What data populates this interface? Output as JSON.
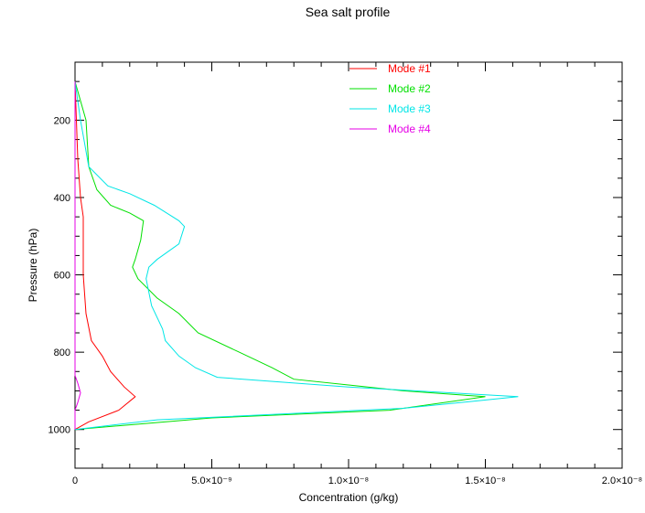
{
  "chart_data": {
    "type": "line",
    "title": "Sea salt profile",
    "xlabel": "Concentration (g/kg)",
    "ylabel": "Pressure (hPa)",
    "xlim": [
      0,
      2e-08
    ],
    "ylim": [
      1100,
      50
    ],
    "y_reversed": true,
    "grid": false,
    "legend_position": "top-right",
    "x_ticks": [
      {
        "value": 0,
        "label": "0"
      },
      {
        "value": 5e-09,
        "label": "5.0×10⁻⁹"
      },
      {
        "value": 1e-08,
        "label": "1.0×10⁻⁸"
      },
      {
        "value": 1.5e-08,
        "label": "1.5×10⁻⁸"
      },
      {
        "value": 2e-08,
        "label": "2.0×10⁻⁸"
      }
    ],
    "y_ticks": [
      {
        "value": 200,
        "label": "200"
      },
      {
        "value": 400,
        "label": "400"
      },
      {
        "value": 600,
        "label": "600"
      },
      {
        "value": 800,
        "label": "800"
      },
      {
        "value": 1000,
        "label": "1000"
      }
    ],
    "series": [
      {
        "name": "Mode #1",
        "color": "#ff0000",
        "points": [
          [
            0,
            100
          ],
          [
            5e-11,
            200
          ],
          [
            1e-10,
            300
          ],
          [
            2e-10,
            400
          ],
          [
            3e-10,
            450
          ],
          [
            3e-10,
            500
          ],
          [
            3e-10,
            600
          ],
          [
            4e-10,
            700
          ],
          [
            6e-10,
            770
          ],
          [
            1e-09,
            810
          ],
          [
            1.3e-09,
            850
          ],
          [
            1.8e-09,
            890
          ],
          [
            2.2e-09,
            915
          ],
          [
            1.6e-09,
            950
          ],
          [
            5e-10,
            980
          ],
          [
            0,
            1000
          ]
        ]
      },
      {
        "name": "Mode #2",
        "color": "#00e000",
        "points": [
          [
            0,
            100
          ],
          [
            4e-10,
            200
          ],
          [
            5e-10,
            320
          ],
          [
            8e-10,
            380
          ],
          [
            1.3e-09,
            420
          ],
          [
            2e-09,
            440
          ],
          [
            2.5e-09,
            460
          ],
          [
            2.4e-09,
            510
          ],
          [
            2.2e-09,
            560
          ],
          [
            2.1e-09,
            580
          ],
          [
            2.3e-09,
            610
          ],
          [
            3e-09,
            660
          ],
          [
            3.8e-09,
            700
          ],
          [
            4.5e-09,
            750
          ],
          [
            6e-09,
            800
          ],
          [
            7.2e-09,
            840
          ],
          [
            8e-09,
            870
          ],
          [
            1.2e-08,
            900
          ],
          [
            1.5e-08,
            915
          ],
          [
            1.15e-08,
            950
          ],
          [
            5e-09,
            970
          ],
          [
            0,
            1000
          ]
        ]
      },
      {
        "name": "Mode #3",
        "color": "#00e6e6",
        "points": [
          [
            0,
            100
          ],
          [
            2e-10,
            200
          ],
          [
            5e-10,
            320
          ],
          [
            1.2e-09,
            370
          ],
          [
            2e-09,
            390
          ],
          [
            2.9e-09,
            420
          ],
          [
            3.8e-09,
            460
          ],
          [
            4e-09,
            475
          ],
          [
            3.8e-09,
            520
          ],
          [
            3e-09,
            560
          ],
          [
            2.7e-09,
            580
          ],
          [
            2.6e-09,
            610
          ],
          [
            2.8e-09,
            680
          ],
          [
            3.2e-09,
            740
          ],
          [
            3.3e-09,
            770
          ],
          [
            3.8e-09,
            810
          ],
          [
            4.4e-09,
            840
          ],
          [
            5.2e-09,
            865
          ],
          [
            1e-08,
            890
          ],
          [
            1.62e-08,
            915
          ],
          [
            1.2e-08,
            945
          ],
          [
            3e-09,
            975
          ],
          [
            0,
            1000
          ]
        ]
      },
      {
        "name": "Mode #4",
        "color": "#e600e6",
        "points": [
          [
            0,
            100
          ],
          [
            0,
            300
          ],
          [
            0,
            600
          ],
          [
            0,
            800
          ],
          [
            0,
            860
          ],
          [
            1e-10,
            880
          ],
          [
            2e-10,
            905
          ],
          [
            1e-10,
            930
          ],
          [
            0,
            950
          ],
          [
            0,
            1000
          ]
        ]
      }
    ]
  }
}
